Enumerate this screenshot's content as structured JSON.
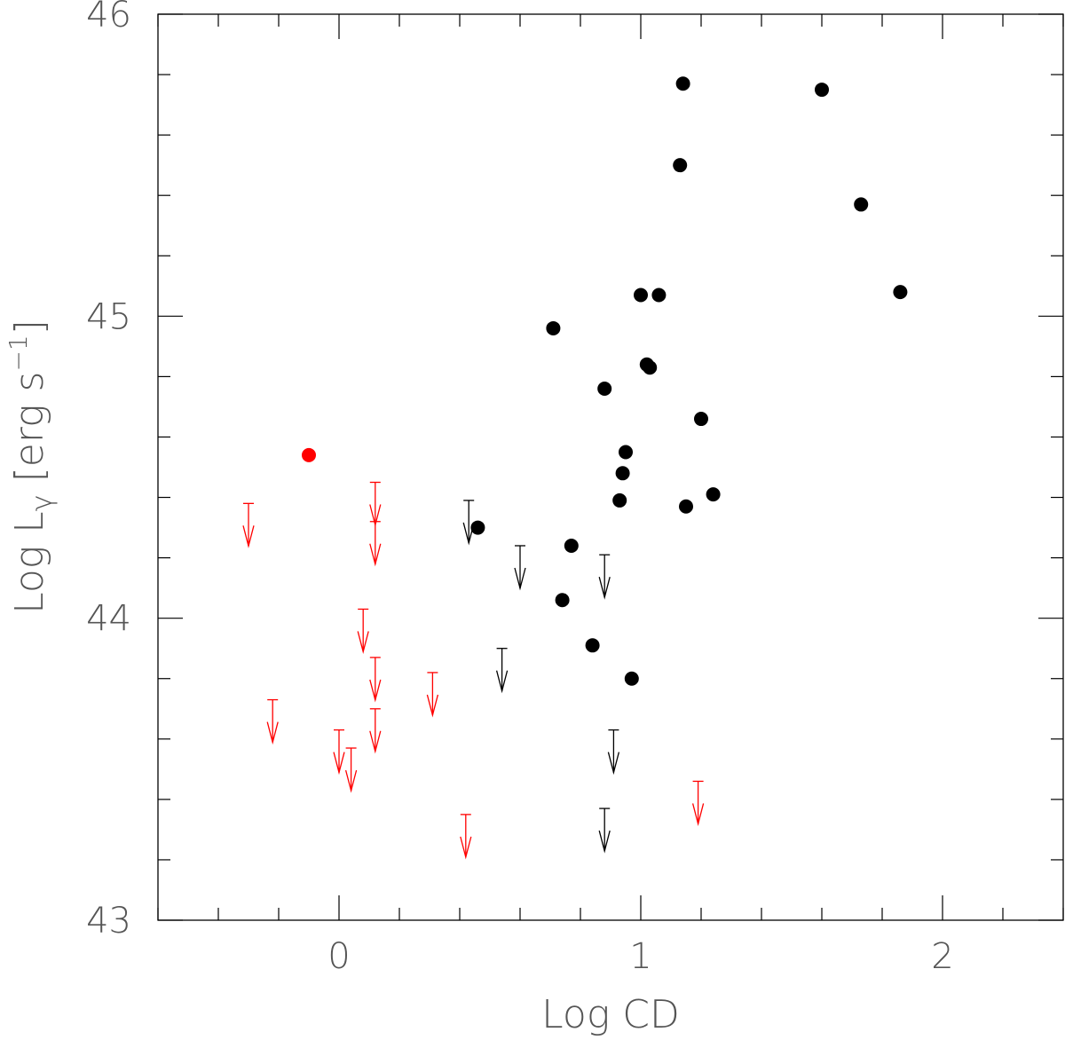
{
  "chart_data": {
    "type": "scatter",
    "xlabel": "Log CD",
    "ylabel": "Log Lγ [erg s⁻¹]",
    "ylabel_parts": {
      "main": "Log L",
      "sub": "γ",
      "bracket": "[erg s",
      "sup": "−1",
      "close": "]"
    },
    "xlim": [
      -0.6,
      2.4
    ],
    "ylim": [
      43,
      46
    ],
    "x_ticks": [
      0,
      1,
      2
    ],
    "y_ticks": [
      43,
      44,
      45,
      46
    ],
    "grid": false,
    "colors": {
      "black": "#000000",
      "red": "#ff0000"
    },
    "series": [
      {
        "kind": "detections",
        "color": "black",
        "points": [
          {
            "x": 1.14,
            "y": 45.77
          },
          {
            "x": 1.6,
            "y": 45.75
          },
          {
            "x": 1.13,
            "y": 45.5
          },
          {
            "x": 1.73,
            "y": 45.37
          },
          {
            "x": 1.86,
            "y": 45.08
          },
          {
            "x": 1.06,
            "y": 45.07
          },
          {
            "x": 1.0,
            "y": 45.07
          },
          {
            "x": 0.71,
            "y": 44.96
          },
          {
            "x": 1.02,
            "y": 44.84
          },
          {
            "x": 1.03,
            "y": 44.83
          },
          {
            "x": 0.88,
            "y": 44.76
          },
          {
            "x": 1.2,
            "y": 44.66
          },
          {
            "x": 0.95,
            "y": 44.55
          },
          {
            "x": 0.94,
            "y": 44.48
          },
          {
            "x": 1.24,
            "y": 44.41
          },
          {
            "x": 0.93,
            "y": 44.39
          },
          {
            "x": 1.15,
            "y": 44.37
          },
          {
            "x": 0.46,
            "y": 44.3
          },
          {
            "x": 0.77,
            "y": 44.24
          },
          {
            "x": 0.74,
            "y": 44.06
          },
          {
            "x": 0.84,
            "y": 43.91
          },
          {
            "x": 0.97,
            "y": 43.8
          }
        ]
      },
      {
        "kind": "detections",
        "color": "red",
        "points": [
          {
            "x": -0.1,
            "y": 44.54
          }
        ]
      },
      {
        "kind": "upper_limits",
        "color": "black",
        "points": [
          {
            "x": 0.43,
            "y": 44.39
          },
          {
            "x": 0.6,
            "y": 44.24
          },
          {
            "x": 0.88,
            "y": 44.21
          },
          {
            "x": 0.54,
            "y": 43.9
          },
          {
            "x": 0.91,
            "y": 43.63
          },
          {
            "x": 0.88,
            "y": 43.37
          }
        ]
      },
      {
        "kind": "upper_limits",
        "color": "red",
        "points": [
          {
            "x": -0.3,
            "y": 44.38
          },
          {
            "x": 0.12,
            "y": 44.45
          },
          {
            "x": 0.12,
            "y": 44.32
          },
          {
            "x": 0.08,
            "y": 44.03
          },
          {
            "x": 0.12,
            "y": 43.87
          },
          {
            "x": -0.22,
            "y": 43.73
          },
          {
            "x": 0.31,
            "y": 43.82
          },
          {
            "x": 0.12,
            "y": 43.7
          },
          {
            "x": 0.0,
            "y": 43.63
          },
          {
            "x": 0.04,
            "y": 43.57
          },
          {
            "x": 1.19,
            "y": 43.46
          },
          {
            "x": 0.42,
            "y": 43.35
          }
        ]
      }
    ]
  }
}
